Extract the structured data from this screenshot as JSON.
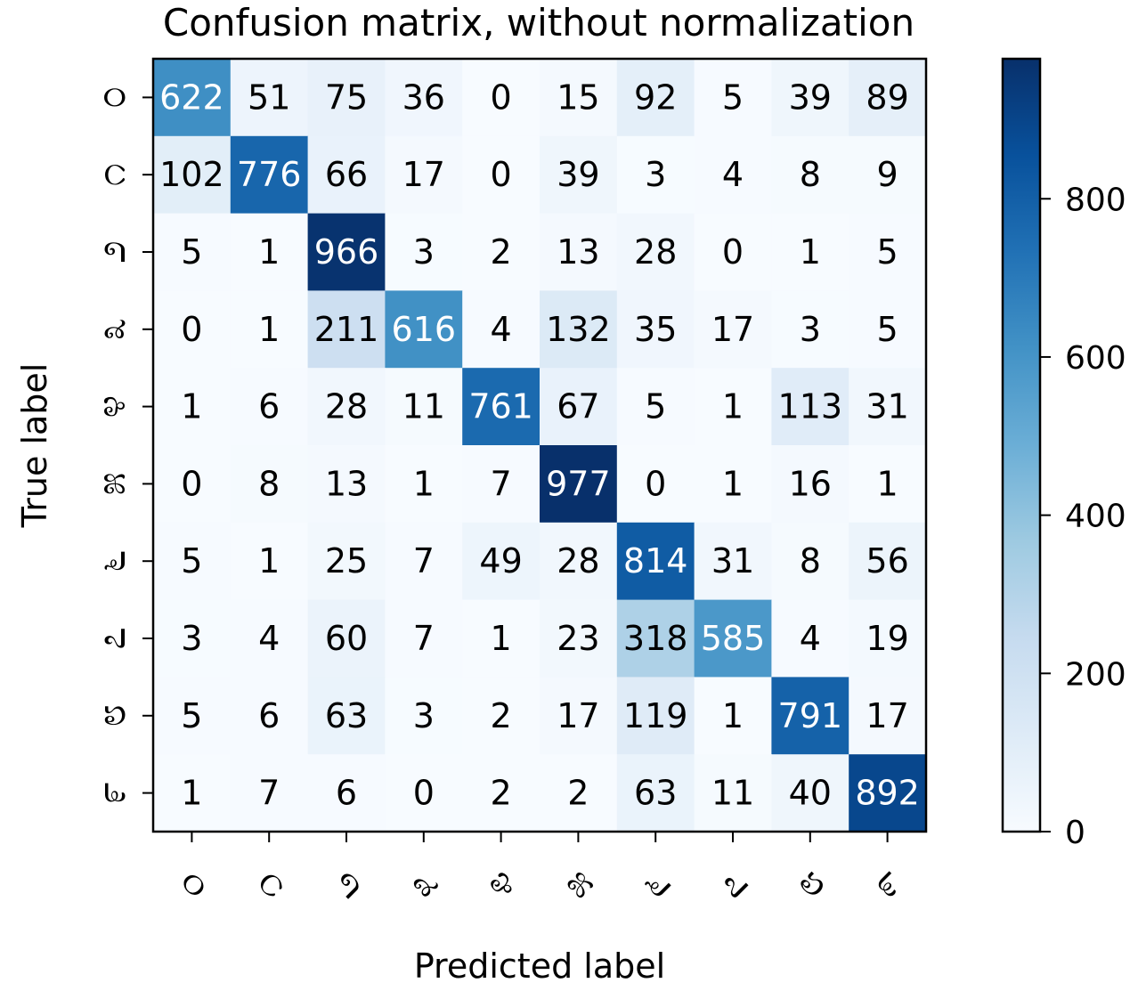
{
  "chart_data": {
    "type": "heatmap",
    "title": "Confusion matrix, without normalization",
    "xlabel": "Predicted label",
    "ylabel": "True label",
    "x_tick_labels": [
      "೦",
      "೧",
      "೨",
      "೩",
      "೪",
      "೫",
      "೬",
      "೭",
      "೮",
      "೯"
    ],
    "y_tick_labels": [
      "೦",
      "೧",
      "೨",
      "೩",
      "೪",
      "೫",
      "೬",
      "೭",
      "೮",
      "೯"
    ],
    "matrix": [
      [
        622,
        51,
        75,
        36,
        0,
        15,
        92,
        5,
        39,
        89
      ],
      [
        102,
        776,
        66,
        17,
        0,
        39,
        3,
        4,
        8,
        9
      ],
      [
        5,
        1,
        966,
        3,
        2,
        13,
        28,
        0,
        1,
        5
      ],
      [
        0,
        1,
        211,
        616,
        4,
        132,
        35,
        17,
        3,
        5
      ],
      [
        1,
        6,
        28,
        11,
        761,
        67,
        5,
        1,
        113,
        31
      ],
      [
        0,
        8,
        13,
        1,
        7,
        977,
        0,
        1,
        16,
        1
      ],
      [
        5,
        1,
        25,
        7,
        49,
        28,
        814,
        31,
        8,
        56
      ],
      [
        3,
        4,
        60,
        7,
        1,
        23,
        318,
        585,
        4,
        19
      ],
      [
        5,
        6,
        63,
        3,
        2,
        17,
        119,
        1,
        791,
        17
      ],
      [
        1,
        7,
        6,
        0,
        2,
        2,
        63,
        11,
        40,
        892
      ]
    ],
    "colormap": "Blues",
    "colorbar": {
      "ticks": [
        0,
        200,
        400,
        600,
        800
      ],
      "range": [
        0,
        977
      ]
    },
    "grid": false
  }
}
